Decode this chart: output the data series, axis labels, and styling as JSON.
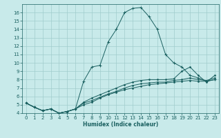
{
  "title": "",
  "xlabel": "Humidex (Indice chaleur)",
  "ylabel": "",
  "bg_color": "#c8eaea",
  "grid_color": "#a0cccc",
  "line_color": "#1a6060",
  "xlim": [
    -0.5,
    23.5
  ],
  "ylim": [
    4,
    17
  ],
  "xticks": [
    0,
    1,
    2,
    3,
    4,
    5,
    6,
    7,
    8,
    9,
    10,
    11,
    12,
    13,
    14,
    15,
    16,
    17,
    18,
    19,
    20,
    21,
    22,
    23
  ],
  "yticks": [
    4,
    5,
    6,
    7,
    8,
    9,
    10,
    11,
    12,
    13,
    14,
    15,
    16
  ],
  "lines": [
    {
      "x": [
        0,
        1,
        2,
        3,
        4,
        5,
        6,
        7,
        8,
        9,
        10,
        11,
        12,
        13,
        14,
        15,
        16,
        17,
        18,
        19,
        20,
        21,
        22,
        23
      ],
      "y": [
        5.2,
        4.7,
        4.3,
        4.5,
        4.0,
        4.2,
        4.5,
        7.8,
        9.5,
        9.7,
        12.5,
        14.0,
        16.0,
        16.5,
        16.6,
        15.5,
        14.0,
        11.0,
        10.0,
        9.5,
        8.5,
        8.2,
        7.8,
        8.0
      ],
      "marker": "+"
    },
    {
      "x": [
        0,
        1,
        2,
        3,
        4,
        5,
        6,
        7,
        8,
        9,
        10,
        11,
        12,
        13,
        14,
        15,
        16,
        17,
        18,
        19,
        20,
        21,
        22,
        23
      ],
      "y": [
        5.2,
        4.7,
        4.3,
        4.5,
        4.0,
        4.2,
        4.5,
        5.0,
        5.3,
        5.8,
        6.2,
        6.5,
        6.8,
        7.0,
        7.2,
        7.4,
        7.5,
        7.6,
        7.7,
        7.8,
        7.9,
        7.8,
        7.8,
        8.0
      ],
      "marker": "."
    },
    {
      "x": [
        0,
        1,
        2,
        3,
        4,
        5,
        6,
        7,
        8,
        9,
        10,
        11,
        12,
        13,
        14,
        15,
        16,
        17,
        18,
        19,
        20,
        21,
        22,
        23
      ],
      "y": [
        5.2,
        4.7,
        4.3,
        4.5,
        4.0,
        4.2,
        4.5,
        5.2,
        5.5,
        5.9,
        6.3,
        6.6,
        7.0,
        7.3,
        7.5,
        7.6,
        7.7,
        7.7,
        7.9,
        8.0,
        8.2,
        8.0,
        7.9,
        8.2
      ],
      "marker": "."
    },
    {
      "x": [
        0,
        1,
        2,
        3,
        4,
        5,
        6,
        7,
        8,
        9,
        10,
        11,
        12,
        13,
        14,
        15,
        16,
        17,
        18,
        19,
        20,
        21,
        22,
        23
      ],
      "y": [
        5.2,
        4.7,
        4.3,
        4.5,
        4.0,
        4.2,
        4.5,
        5.3,
        5.8,
        6.2,
        6.6,
        7.0,
        7.4,
        7.7,
        7.9,
        8.0,
        8.0,
        8.0,
        8.1,
        9.0,
        9.5,
        8.5,
        7.7,
        8.5
      ],
      "marker": "."
    }
  ]
}
